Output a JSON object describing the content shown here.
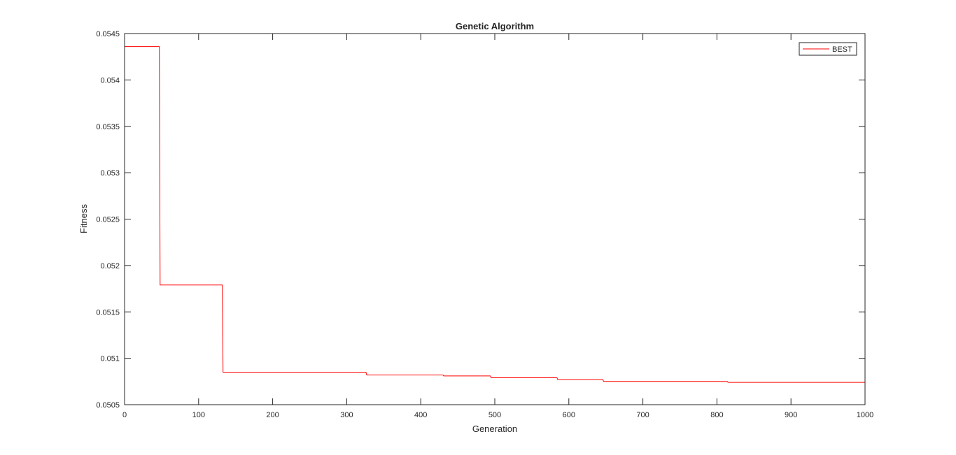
{
  "chart_data": {
    "type": "line",
    "title": "Genetic Algorithm",
    "xlabel": "Generation",
    "ylabel": "Fitness",
    "xlim": [
      0,
      1000
    ],
    "ylim": [
      0.0505,
      0.0545
    ],
    "xticks": [
      0,
      100,
      200,
      300,
      400,
      500,
      600,
      700,
      800,
      900,
      1000
    ],
    "yticks": [
      0.0505,
      0.051,
      0.0515,
      0.052,
      0.0525,
      0.053,
      0.0535,
      0.054,
      0.0545
    ],
    "ytick_labels": [
      "0.0505",
      "0.051",
      "0.0515",
      "0.052",
      "0.0525",
      "0.053",
      "0.0535",
      "0.054",
      "0.0545"
    ],
    "grid": false,
    "legend_position": "top-right",
    "series": [
      {
        "name": "BEST",
        "color": "#ff0000",
        "step": true,
        "x": [
          0,
          47,
          48,
          132,
          133,
          326,
          327,
          430,
          431,
          494,
          495,
          584,
          585,
          646,
          647,
          814,
          815,
          1000
        ],
        "y": [
          0.05436,
          0.05436,
          0.05179,
          0.05179,
          0.05085,
          0.05085,
          0.05082,
          0.05082,
          0.05081,
          0.05081,
          0.05079,
          0.05079,
          0.05077,
          0.05077,
          0.05075,
          0.05075,
          0.05074,
          0.05074
        ]
      }
    ]
  }
}
